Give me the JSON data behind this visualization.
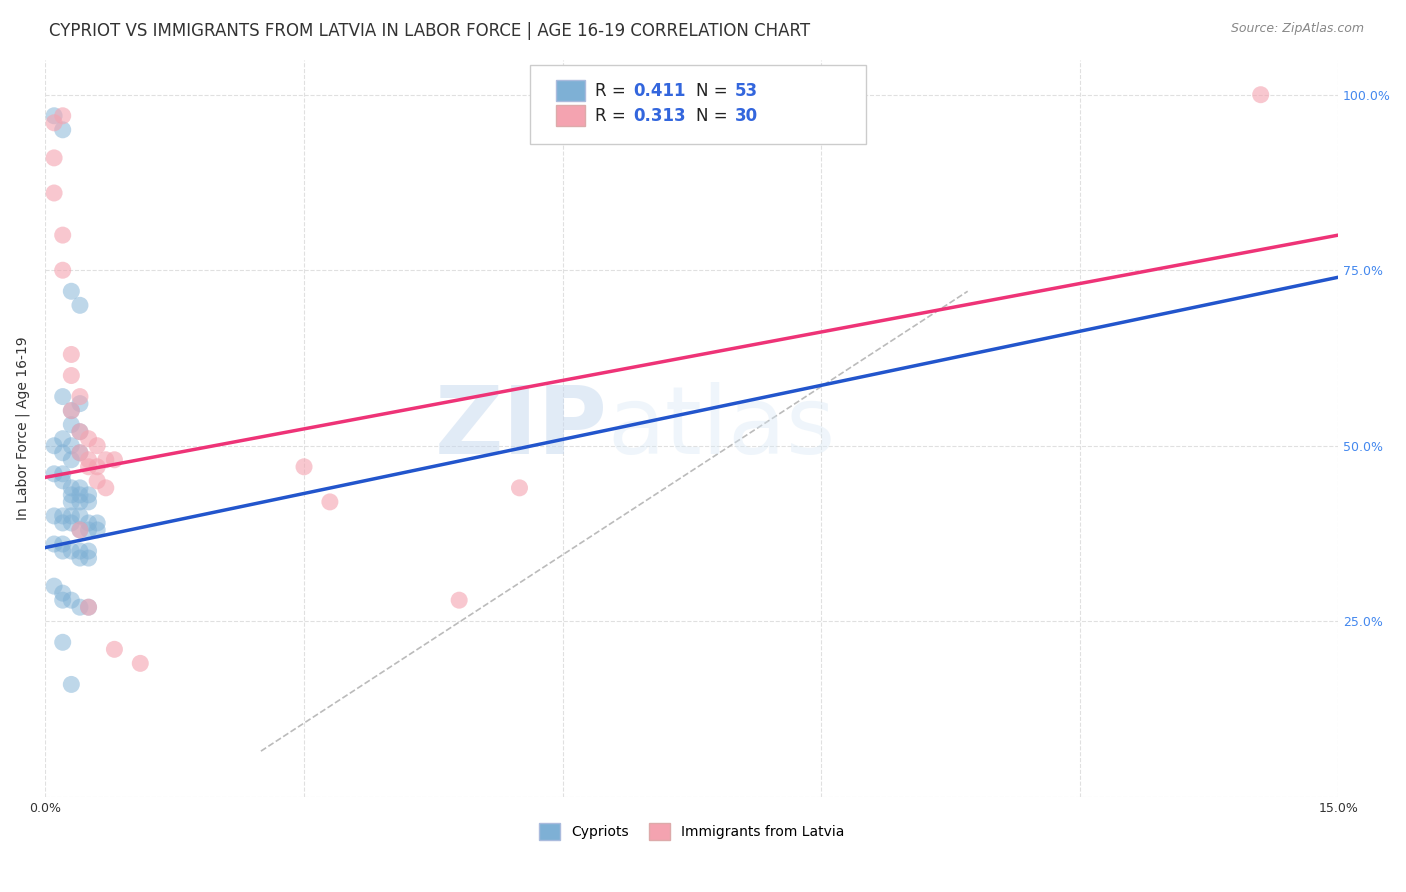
{
  "title": "CYPRIOT VS IMMIGRANTS FROM LATVIA IN LABOR FORCE | AGE 16-19 CORRELATION CHART",
  "source": "Source: ZipAtlas.com",
  "ylabel": "In Labor Force | Age 16-19",
  "xmin": 0.0,
  "xmax": 0.15,
  "ymin": 0.0,
  "ymax": 1.05,
  "x_ticks": [
    0.0,
    0.03,
    0.06,
    0.09,
    0.12,
    0.15
  ],
  "x_tick_labels": [
    "0.0%",
    "",
    "",
    "",
    "",
    "15.0%"
  ],
  "y_ticks": [
    0.0,
    0.25,
    0.5,
    0.75,
    1.0
  ],
  "y_tick_labels_right": [
    "",
    "25.0%",
    "50.0%",
    "75.0%",
    "100.0%"
  ],
  "R_blue": 0.411,
  "N_blue": 53,
  "R_pink": 0.313,
  "N_pink": 30,
  "blue_color": "#7EB0D5",
  "pink_color": "#F4A3B0",
  "blue_scatter": [
    [
      0.001,
      0.97
    ],
    [
      0.002,
      0.95
    ],
    [
      0.003,
      0.72
    ],
    [
      0.004,
      0.7
    ],
    [
      0.002,
      0.57
    ],
    [
      0.003,
      0.55
    ],
    [
      0.003,
      0.53
    ],
    [
      0.004,
      0.56
    ],
    [
      0.004,
      0.52
    ],
    [
      0.001,
      0.5
    ],
    [
      0.002,
      0.51
    ],
    [
      0.002,
      0.49
    ],
    [
      0.003,
      0.5
    ],
    [
      0.003,
      0.48
    ],
    [
      0.004,
      0.49
    ],
    [
      0.001,
      0.46
    ],
    [
      0.002,
      0.46
    ],
    [
      0.002,
      0.45
    ],
    [
      0.003,
      0.44
    ],
    [
      0.003,
      0.43
    ],
    [
      0.003,
      0.42
    ],
    [
      0.004,
      0.44
    ],
    [
      0.004,
      0.43
    ],
    [
      0.004,
      0.42
    ],
    [
      0.005,
      0.43
    ],
    [
      0.005,
      0.42
    ],
    [
      0.001,
      0.4
    ],
    [
      0.002,
      0.4
    ],
    [
      0.002,
      0.39
    ],
    [
      0.003,
      0.4
    ],
    [
      0.003,
      0.39
    ],
    [
      0.004,
      0.4
    ],
    [
      0.004,
      0.38
    ],
    [
      0.005,
      0.39
    ],
    [
      0.005,
      0.38
    ],
    [
      0.006,
      0.39
    ],
    [
      0.006,
      0.38
    ],
    [
      0.001,
      0.36
    ],
    [
      0.002,
      0.36
    ],
    [
      0.002,
      0.35
    ],
    [
      0.003,
      0.35
    ],
    [
      0.004,
      0.35
    ],
    [
      0.004,
      0.34
    ],
    [
      0.005,
      0.35
    ],
    [
      0.005,
      0.34
    ],
    [
      0.001,
      0.3
    ],
    [
      0.002,
      0.29
    ],
    [
      0.002,
      0.28
    ],
    [
      0.003,
      0.28
    ],
    [
      0.004,
      0.27
    ],
    [
      0.005,
      0.27
    ],
    [
      0.002,
      0.22
    ],
    [
      0.003,
      0.16
    ]
  ],
  "pink_scatter": [
    [
      0.002,
      0.97
    ],
    [
      0.001,
      0.86
    ],
    [
      0.002,
      0.8
    ],
    [
      0.002,
      0.75
    ],
    [
      0.003,
      0.63
    ],
    [
      0.003,
      0.6
    ],
    [
      0.004,
      0.57
    ],
    [
      0.003,
      0.55
    ],
    [
      0.004,
      0.52
    ],
    [
      0.005,
      0.51
    ],
    [
      0.004,
      0.49
    ],
    [
      0.005,
      0.48
    ],
    [
      0.006,
      0.5
    ],
    [
      0.005,
      0.47
    ],
    [
      0.006,
      0.47
    ],
    [
      0.007,
      0.48
    ],
    [
      0.006,
      0.45
    ],
    [
      0.007,
      0.44
    ],
    [
      0.008,
      0.48
    ],
    [
      0.03,
      0.47
    ],
    [
      0.055,
      0.44
    ],
    [
      0.033,
      0.42
    ],
    [
      0.005,
      0.27
    ],
    [
      0.048,
      0.28
    ],
    [
      0.008,
      0.21
    ],
    [
      0.011,
      0.19
    ],
    [
      0.141,
      1.0
    ],
    [
      0.004,
      0.38
    ],
    [
      0.001,
      0.96
    ],
    [
      0.001,
      0.91
    ]
  ],
  "blue_line": {
    "x0": 0.0,
    "y0": 0.355,
    "x1": 0.15,
    "y1": 0.74
  },
  "pink_line": {
    "x0": 0.0,
    "y0": 0.455,
    "x1": 0.15,
    "y1": 0.8
  },
  "diagonal_line": {
    "x0": 0.025,
    "y0": 0.065,
    "x1": 0.107,
    "y1": 0.72
  },
  "watermark_zip": "ZIP",
  "watermark_atlas": "atlas",
  "title_fontsize": 12,
  "source_fontsize": 9,
  "axis_fontsize": 10,
  "tick_fontsize": 9,
  "legend_fontsize": 12
}
